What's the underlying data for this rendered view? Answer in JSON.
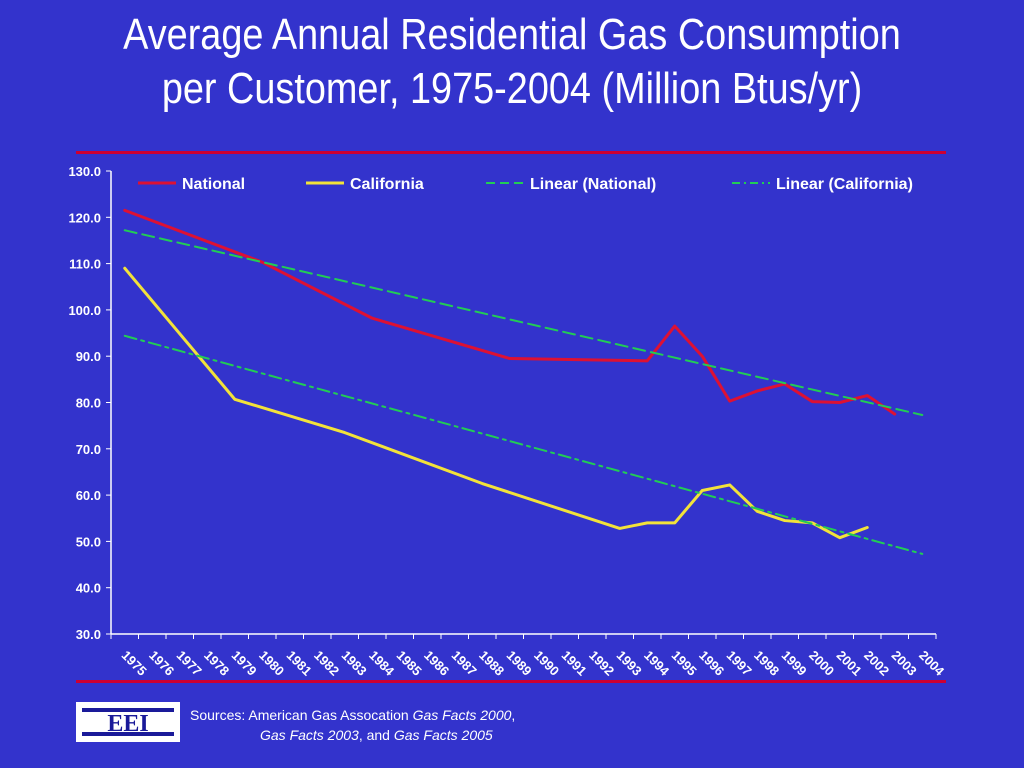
{
  "title_line1": "Average Annual Residential Gas Consumption",
  "title_line2": "per Customer, 1975-2004 (Million Btus/yr)",
  "logo_text": "EEI",
  "sources": {
    "prefix": "Sources: American Gas Assocation ",
    "ref1": "Gas Facts 2000",
    "sep1": ",",
    "ref2": "Gas Facts 2003",
    "sep2": ", and ",
    "ref3": "Gas Facts 2005"
  },
  "colors": {
    "background": "#3333cc",
    "national": "#dd1133",
    "california": "#f2e23a",
    "trend": "#22cc55",
    "accent_rule": "#cc0033"
  },
  "chart_data": {
    "type": "line",
    "categories": [
      "1975",
      "1976",
      "1977",
      "1978",
      "1979",
      "1980",
      "1981",
      "1982",
      "1983",
      "1984",
      "1985",
      "1986",
      "1987",
      "1988",
      "1989",
      "1990",
      "1991",
      "1992",
      "1993",
      "1994",
      "1995",
      "1996",
      "1997",
      "1998",
      "1999",
      "2000",
      "2001",
      "2002",
      "2003",
      "2004"
    ],
    "ylim": [
      30,
      130
    ],
    "yticks": [
      "30.0",
      "40.0",
      "50.0",
      "60.0",
      "70.0",
      "80.0",
      "90.0",
      "100.0",
      "110.0",
      "120.0",
      "130.0"
    ],
    "legend_position": "top",
    "grid": false,
    "series": [
      {
        "name": "National",
        "style": "solid",
        "values": [
          121.5,
          null,
          null,
          null,
          null,
          110.3,
          null,
          null,
          null,
          98.2,
          null,
          null,
          null,
          null,
          89.5,
          null,
          null,
          null,
          null,
          89.0,
          96.5,
          90.0,
          80.3,
          82.5,
          84.0,
          80.2,
          80.0,
          81.5,
          77.5,
          null
        ]
      },
      {
        "name": "California",
        "style": "solid",
        "values": [
          109.0,
          null,
          null,
          null,
          80.7,
          null,
          null,
          null,
          73.5,
          null,
          null,
          null,
          null,
          62.5,
          null,
          null,
          null,
          null,
          52.8,
          54.0,
          54.0,
          61.0,
          62.2,
          56.5,
          54.5,
          54.0,
          50.8,
          53.0,
          null,
          null
        ]
      },
      {
        "name": "Linear (National)",
        "style": "dash",
        "values": [
          117.2,
          null,
          null,
          null,
          null,
          null,
          null,
          null,
          null,
          null,
          null,
          null,
          null,
          null,
          null,
          null,
          null,
          null,
          null,
          null,
          null,
          null,
          null,
          null,
          null,
          null,
          null,
          null,
          null,
          77.3
        ]
      },
      {
        "name": "Linear (California)",
        "style": "dashdot",
        "values": [
          94.4,
          null,
          null,
          null,
          null,
          null,
          null,
          null,
          null,
          null,
          null,
          null,
          null,
          null,
          null,
          null,
          null,
          null,
          null,
          null,
          null,
          null,
          null,
          null,
          null,
          null,
          null,
          null,
          null,
          47.3
        ]
      }
    ]
  }
}
